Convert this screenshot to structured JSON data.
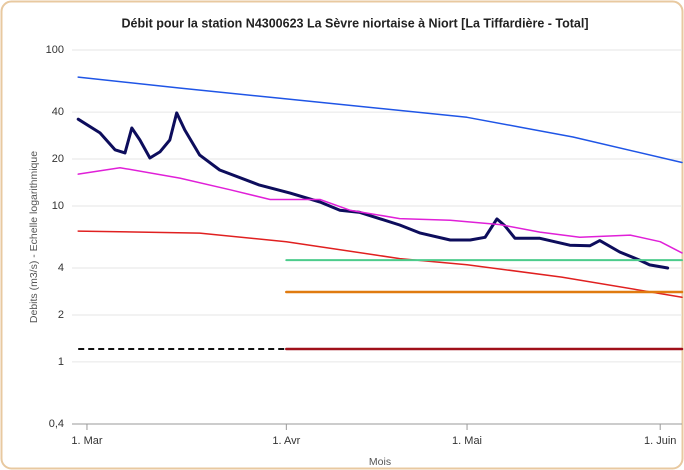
{
  "chart_data": {
    "type": "line",
    "title": "Débit pour la station N4300623 La Sèvre niortaise à Niort [La Tiffardière - Total]",
    "y_label": "Debits (m3/s) - Echelle logarithmique",
    "x_label": "Mois",
    "log_y": true,
    "grid": true,
    "xlim": [
      -2.4,
      95.5
    ],
    "xticks": [
      {
        "value": 0,
        "label": "1. Mar"
      },
      {
        "value": 32,
        "label": "1. Avr"
      },
      {
        "value": 61,
        "label": "1. Mai"
      },
      {
        "value": 92,
        "label": "1. Juin"
      }
    ],
    "ylim": [
      0.4,
      100
    ],
    "yticks": [
      {
        "value": 0.4,
        "label": "0,4"
      },
      1,
      2,
      4,
      10,
      20,
      40,
      100
    ],
    "series": [
      {
        "color": "#1f55e6",
        "width": 1.5,
        "x": [
          -1.4,
          15,
          31,
          61,
          78,
          95.5
        ],
        "values": [
          67,
          57,
          49,
          37,
          27.7,
          19
        ]
      },
      {
        "color": "#0d0d5c",
        "width": 3,
        "x": [
          -1.4,
          2.1,
          4.5,
          6.1,
          7.2,
          8.5,
          10.1,
          11.7,
          13.3,
          14.4,
          15.7,
          18.1,
          21.3,
          27.7,
          32.6,
          37.4,
          40.6,
          43.8,
          50.2,
          53.5,
          58.3,
          61.5,
          63.9,
          65.8,
          67.1,
          68.7,
          72.7,
          77.5,
          80.7,
          82.3,
          85.5,
          88.7,
          90.3,
          93.2
        ],
        "values": [
          36,
          29.4,
          22.9,
          21.9,
          31.6,
          26.5,
          20.3,
          22.2,
          26.5,
          39.5,
          30.7,
          21.2,
          17,
          13.6,
          12.1,
          10.6,
          9.4,
          9.1,
          7.55,
          6.7,
          6.05,
          6.05,
          6.3,
          8.26,
          7.45,
          6.2,
          6.2,
          5.6,
          5.55,
          6,
          5.07,
          4.5,
          4.19,
          4
        ]
      },
      {
        "color": "#e020d8",
        "width": 1.5,
        "x": [
          -1.4,
          5.3,
          14.9,
          23,
          29.4,
          37.4,
          42.2,
          50.2,
          58.3,
          66.3,
          72.7,
          79.1,
          87.2,
          92,
          95.5
        ],
        "values": [
          16,
          17.6,
          15.1,
          12.7,
          11,
          11,
          9.4,
          8.3,
          8.1,
          7.6,
          6.8,
          6.3,
          6.5,
          5.9,
          5
        ]
      },
      {
        "color": "#e02020",
        "width": 1.5,
        "x": [
          -1.4,
          18.1,
          32,
          50.2,
          61,
          76.2,
          95.5
        ],
        "values": [
          6.9,
          6.7,
          5.9,
          4.6,
          4.2,
          3.5,
          2.6
        ]
      },
      {
        "color": "#4ccc8c",
        "width": 2,
        "x": [
          32,
          95.5
        ],
        "values": [
          4.5,
          4.5
        ]
      },
      {
        "color": "#e07b10",
        "width": 2.5,
        "x": [
          32,
          95.5
        ],
        "values": [
          2.81,
          2.81
        ]
      },
      {
        "color": "#a0101a",
        "width": 2.5,
        "x": [
          32,
          95.5
        ],
        "values": [
          1.21,
          1.21
        ]
      },
      {
        "color": "#111111",
        "width": 2,
        "dashed": true,
        "x": [
          -1.4,
          32
        ],
        "values": [
          1.21,
          1.21
        ]
      }
    ]
  }
}
